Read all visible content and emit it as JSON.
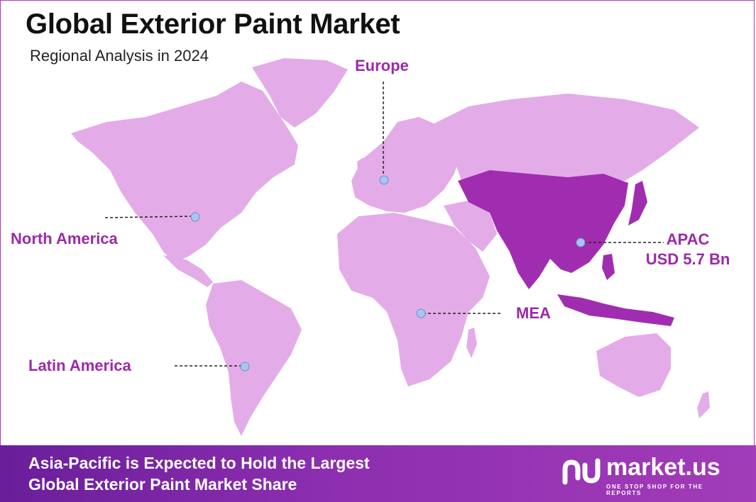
{
  "header": {
    "title": "Global Exterior Paint Market",
    "subtitle": "Regional Analysis in 2024"
  },
  "regions": {
    "north_america": "North America",
    "europe": "Europe",
    "apac": "APAC",
    "apac_value": "USD 5.7 Bn",
    "mea": "MEA",
    "latin_america": "Latin America"
  },
  "highlighted_region": "APAC",
  "footer": {
    "line1": "Asia-Pacific is Expected to Hold the Largest",
    "line2": "Global Exterior Paint Market Share"
  },
  "brand": {
    "name": "market.us",
    "tagline": "ONE STOP SHOP FOR THE REPORTS"
  },
  "colors": {
    "land": "#e3ace8",
    "apac_highlight": "#a02db0",
    "label": "#9b2aa8",
    "marker": "#a9c4f0",
    "footer_start": "#6a1e9a",
    "footer_end": "#a23cb8"
  }
}
